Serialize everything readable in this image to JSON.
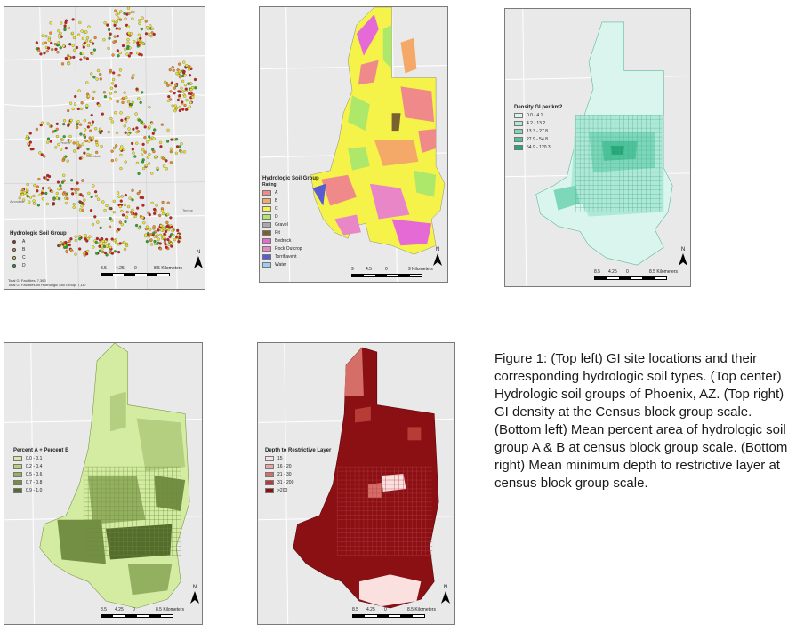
{
  "panels": {
    "top_left": {
      "legend_title": "Hydrologic Soil Group",
      "items": [
        {
          "label": "A",
          "color": "#cc1f1f"
        },
        {
          "label": "B",
          "color": "#f08c2c"
        },
        {
          "label": "C",
          "color": "#ece434"
        },
        {
          "label": "D",
          "color": "#2ea82e"
        }
      ],
      "scale_labels": [
        "8.5",
        "4.25",
        "0",
        "8.5 Kilometers"
      ],
      "north": "N",
      "notes": [
        "Total GI Facilities: 7,363",
        "Total GI Facilities on Hydrologic Soil Group: 7,117"
      ],
      "places": [
        "Glendale",
        "Peoria",
        "Tempe",
        "Avondale"
      ]
    },
    "top_center": {
      "legend_title": "Hydrologic Soil Group",
      "legend_subtitle": "Rating",
      "items": [
        {
          "label": "A",
          "color": "#f08a8a"
        },
        {
          "label": "B",
          "color": "#f5a968"
        },
        {
          "label": "C",
          "color": "#f5f24a"
        },
        {
          "label": "D",
          "color": "#aee86a"
        },
        {
          "label": "Gravel",
          "color": "#a9a9a9"
        },
        {
          "label": "Pit",
          "color": "#7a6230"
        },
        {
          "label": "Bedrock",
          "color": "#e66ad6"
        },
        {
          "label": "Rock Outcrop",
          "color": "#e886c8"
        },
        {
          "label": "Torriflavent",
          "color": "#5a5ad2"
        },
        {
          "label": "Water",
          "color": "#9ecff0"
        }
      ],
      "scale_labels": [
        "9",
        "4.5",
        "0",
        "9 Kilometers"
      ],
      "north": "N"
    },
    "top_right": {
      "legend_title": "Density GI per km2",
      "items": [
        {
          "label": "0.0 - 4.1",
          "color": "#d9f5ee"
        },
        {
          "label": "4.2 - 13.2",
          "color": "#aee8d6"
        },
        {
          "label": "13.3 - 27.8",
          "color": "#7dd8ba"
        },
        {
          "label": "27.9 - 54.8",
          "color": "#4cc39a"
        },
        {
          "label": "54.9 - 120.3",
          "color": "#24a878"
        }
      ],
      "scale_labels": [
        "8.5",
        "4.25",
        "0",
        "8.5 Kilometers"
      ],
      "north": "N"
    },
    "bottom_left": {
      "legend_title": "Percent A + Percent B",
      "items": [
        {
          "label": "0.0 - 0.1",
          "color": "#d3eca2"
        },
        {
          "label": "0.2 - 0.4",
          "color": "#b3cf7f"
        },
        {
          "label": "0.5 - 0.6",
          "color": "#93b060"
        },
        {
          "label": "0.7 - 0.8",
          "color": "#738f43"
        },
        {
          "label": "0.9 - 1.0",
          "color": "#546d2d"
        }
      ],
      "scale_labels": [
        "8.5",
        "4.25",
        "0",
        "8.5 Kilometers"
      ],
      "north": "N"
    },
    "bottom_right": {
      "legend_title": "Depth to Restrictive Layer",
      "items": [
        {
          "label": "15",
          "color": "#fbe0e0"
        },
        {
          "label": "16 - 20",
          "color": "#e9a6a0"
        },
        {
          "label": "21 - 30",
          "color": "#d46e66"
        },
        {
          "label": "31 - 200",
          "color": "#b83c36"
        },
        {
          "label": ">200",
          "color": "#8a1014"
        }
      ],
      "scale_labels": [
        "8.5",
        "4.25",
        "0",
        "8.5 Kilometers"
      ],
      "north": "N"
    }
  },
  "caption": "Figure 1: (Top left) GI site locations and their corresponding hydrologic soil types. (Top center) Hydrologic soil groups of Phoenix, AZ. (Top right) GI density at the Census block group scale. (Bottom left) Mean percent area of hydrologic soil group A & B at census block group scale. (Bottom right) Mean minimum depth to restrictive layer at census block group scale."
}
